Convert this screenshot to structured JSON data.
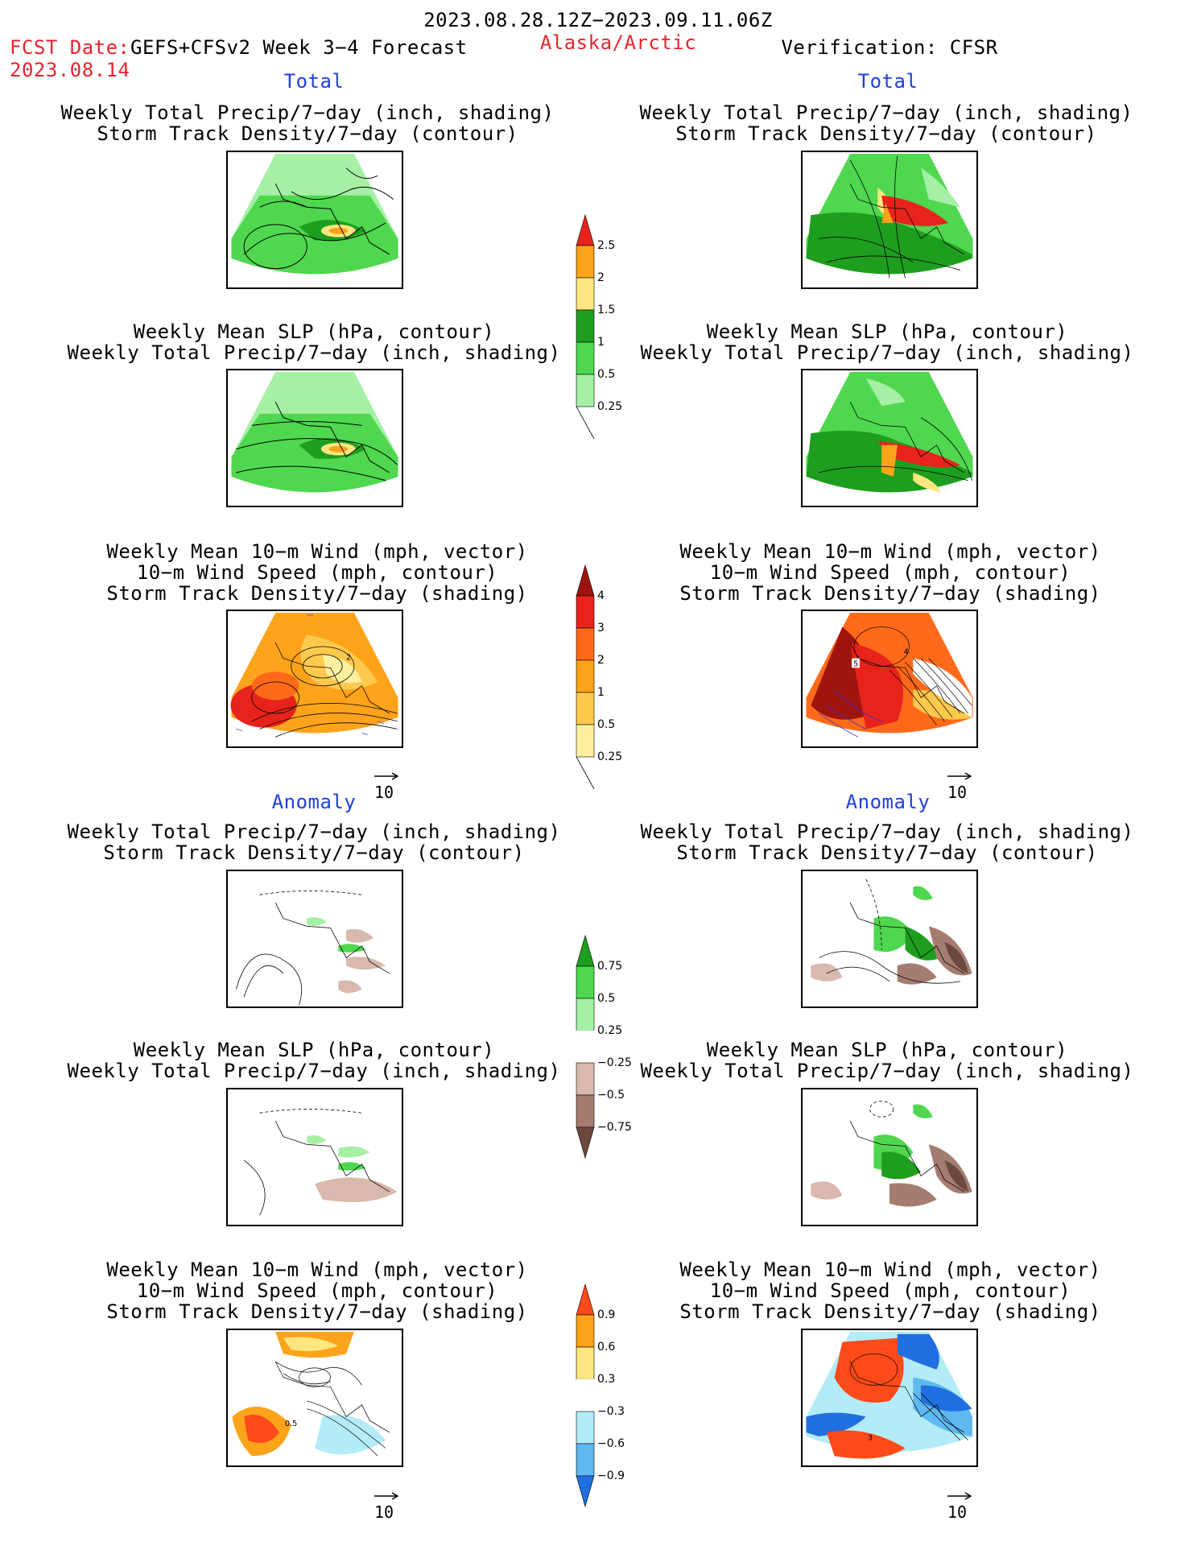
{
  "header": {
    "period": "2023.08.28.12Z−2023.09.11.06Z",
    "fcst_label": "FCST Date:",
    "fcst_date": "2023.08.14",
    "model": "GEFS+CFSv2 Week 3−4 Forecast",
    "region": "Alaska/Arctic",
    "verification": "Verification: CFSR"
  },
  "sections": {
    "total": "Total",
    "anomaly": "Anomaly"
  },
  "titles": {
    "precip_track": [
      "Weekly Total Precip/7−day (inch, shading)",
      "Storm Track Density/7−day (contour)"
    ],
    "slp_precip": [
      "Weekly Mean SLP (hPa, contour)",
      "Weekly Total Precip/7−day (inch, shading)"
    ],
    "wind_track": [
      "Weekly Mean 10−m Wind (mph, vector)",
      "10−m Wind Speed (mph, contour)",
      "Storm Track Density/7−day (shading)"
    ]
  },
  "vector_ref": "10",
  "colorbars": {
    "precip_total": {
      "labels": [
        "2.5",
        "2",
        "1.5",
        "1",
        "0.5",
        "0.25"
      ],
      "colors": [
        "#e8231c",
        "#ffa31a",
        "#ffe680",
        "#1e9e1e",
        "#4fd74f",
        "#a6f0a6"
      ]
    },
    "track_total": {
      "labels": [
        "4",
        "3",
        "2",
        "1",
        "0.5",
        "0.25"
      ],
      "colors": [
        "#a0140f",
        "#e8231c",
        "#ff6a1a",
        "#ffa31a",
        "#ffc94d",
        "#fff0a0",
        "#fffadf"
      ]
    },
    "precip_anom": {
      "labels": [
        "0.75",
        "0.5",
        "0.25",
        "−0.25",
        "−0.5",
        "−0.75"
      ],
      "colors": [
        "#1e9e1e",
        "#4fd74f",
        "#a6f0a6",
        "#ffffff",
        "#d9b8ad",
        "#a57c70",
        "#6b4a3e"
      ]
    },
    "track_anom": {
      "labels": [
        "0.9",
        "0.6",
        "0.3",
        "−0.3",
        "−0.6",
        "−0.9"
      ],
      "colors": [
        "#ff4a1a",
        "#ffa31a",
        "#ffe680",
        "#ffffff",
        "#b3ecf7",
        "#5fb8f0",
        "#1f6fe0"
      ]
    },
    "colors": {
      "title_red": "#e8232b",
      "section_blue": "#1f3fe0"
    }
  },
  "map_labels": {
    "wind_total_left": "2",
    "wind_total_right_a": "5",
    "wind_total_right_b": "4",
    "wind_anom_left": "0.5",
    "wind_anom_right": "3"
  }
}
